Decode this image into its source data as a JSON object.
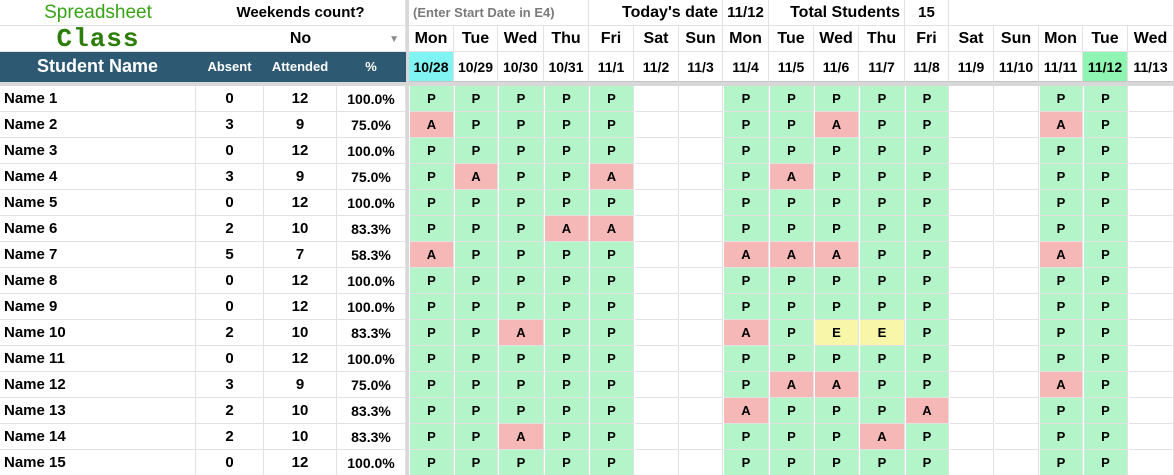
{
  "title": {
    "line1": "Spreadsheet",
    "line2": "Class"
  },
  "weekends": {
    "label": "Weekends count?",
    "value": "No"
  },
  "hint": "(Enter Start Date in E4)",
  "today": {
    "label": "Today's date",
    "value": "11/12"
  },
  "total": {
    "label": "Total Students",
    "value": "15"
  },
  "headers": {
    "name": "Student Name",
    "absent": "Absent",
    "attended": "Attended",
    "percent": "%"
  },
  "days": [
    "Mon",
    "Tue",
    "Wed",
    "Thu",
    "Fri",
    "Sat",
    "Sun",
    "Mon",
    "Tue",
    "Wed",
    "Thu",
    "Fri",
    "Sat",
    "Sun",
    "Mon",
    "Tue",
    "Wed"
  ],
  "dates": [
    "10/28",
    "10/29",
    "10/30",
    "10/31",
    "11/1",
    "11/2",
    "11/3",
    "11/4",
    "11/5",
    "11/6",
    "11/7",
    "11/8",
    "11/9",
    "11/10",
    "11/11",
    "11/12",
    "11/13"
  ],
  "students": [
    {
      "name": "Name 1",
      "absent": "0",
      "attended": "12",
      "pct": "100.0%",
      "marks": [
        "P",
        "P",
        "P",
        "P",
        "P",
        "",
        "",
        "P",
        "P",
        "P",
        "P",
        "P",
        "",
        "",
        "P",
        "P",
        ""
      ]
    },
    {
      "name": "Name 2",
      "absent": "3",
      "attended": "9",
      "pct": "75.0%",
      "marks": [
        "A",
        "P",
        "P",
        "P",
        "P",
        "",
        "",
        "P",
        "P",
        "A",
        "P",
        "P",
        "",
        "",
        "A",
        "P",
        ""
      ]
    },
    {
      "name": "Name 3",
      "absent": "0",
      "attended": "12",
      "pct": "100.0%",
      "marks": [
        "P",
        "P",
        "P",
        "P",
        "P",
        "",
        "",
        "P",
        "P",
        "P",
        "P",
        "P",
        "",
        "",
        "P",
        "P",
        ""
      ]
    },
    {
      "name": "Name 4",
      "absent": "3",
      "attended": "9",
      "pct": "75.0%",
      "marks": [
        "P",
        "A",
        "P",
        "P",
        "A",
        "",
        "",
        "P",
        "A",
        "P",
        "P",
        "P",
        "",
        "",
        "P",
        "P",
        ""
      ]
    },
    {
      "name": "Name 5",
      "absent": "0",
      "attended": "12",
      "pct": "100.0%",
      "marks": [
        "P",
        "P",
        "P",
        "P",
        "P",
        "",
        "",
        "P",
        "P",
        "P",
        "P",
        "P",
        "",
        "",
        "P",
        "P",
        ""
      ]
    },
    {
      "name": "Name 6",
      "absent": "2",
      "attended": "10",
      "pct": "83.3%",
      "marks": [
        "P",
        "P",
        "P",
        "A",
        "A",
        "",
        "",
        "P",
        "P",
        "P",
        "P",
        "P",
        "",
        "",
        "P",
        "P",
        ""
      ]
    },
    {
      "name": "Name 7",
      "absent": "5",
      "attended": "7",
      "pct": "58.3%",
      "marks": [
        "A",
        "P",
        "P",
        "P",
        "P",
        "",
        "",
        "A",
        "A",
        "A",
        "P",
        "P",
        "",
        "",
        "A",
        "P",
        ""
      ]
    },
    {
      "name": "Name 8",
      "absent": "0",
      "attended": "12",
      "pct": "100.0%",
      "marks": [
        "P",
        "P",
        "P",
        "P",
        "P",
        "",
        "",
        "P",
        "P",
        "P",
        "P",
        "P",
        "",
        "",
        "P",
        "P",
        ""
      ]
    },
    {
      "name": "Name 9",
      "absent": "0",
      "attended": "12",
      "pct": "100.0%",
      "marks": [
        "P",
        "P",
        "P",
        "P",
        "P",
        "",
        "",
        "P",
        "P",
        "P",
        "P",
        "P",
        "",
        "",
        "P",
        "P",
        ""
      ]
    },
    {
      "name": "Name 10",
      "absent": "2",
      "attended": "10",
      "pct": "83.3%",
      "marks": [
        "P",
        "P",
        "A",
        "P",
        "P",
        "",
        "",
        "A",
        "P",
        "E",
        "E",
        "P",
        "",
        "",
        "P",
        "P",
        ""
      ]
    },
    {
      "name": "Name 11",
      "absent": "0",
      "attended": "12",
      "pct": "100.0%",
      "marks": [
        "P",
        "P",
        "P",
        "P",
        "P",
        "",
        "",
        "P",
        "P",
        "P",
        "P",
        "P",
        "",
        "",
        "P",
        "P",
        ""
      ]
    },
    {
      "name": "Name 12",
      "absent": "3",
      "attended": "9",
      "pct": "75.0%",
      "marks": [
        "P",
        "P",
        "P",
        "P",
        "P",
        "",
        "",
        "P",
        "A",
        "A",
        "P",
        "P",
        "",
        "",
        "A",
        "P",
        ""
      ]
    },
    {
      "name": "Name 13",
      "absent": "2",
      "attended": "10",
      "pct": "83.3%",
      "marks": [
        "P",
        "P",
        "P",
        "P",
        "P",
        "",
        "",
        "A",
        "P",
        "P",
        "P",
        "A",
        "",
        "",
        "P",
        "P",
        ""
      ]
    },
    {
      "name": "Name 14",
      "absent": "2",
      "attended": "10",
      "pct": "83.3%",
      "marks": [
        "P",
        "P",
        "A",
        "P",
        "P",
        "",
        "",
        "P",
        "P",
        "P",
        "A",
        "P",
        "",
        "",
        "P",
        "P",
        ""
      ]
    },
    {
      "name": "Name 15",
      "absent": "0",
      "attended": "12",
      "pct": "100.0%",
      "marks": [
        "P",
        "P",
        "P",
        "P",
        "P",
        "",
        "",
        "P",
        "P",
        "P",
        "P",
        "P",
        "",
        "",
        "P",
        "P",
        ""
      ]
    }
  ],
  "colors": {
    "header_dark": "#2d5973",
    "present": "#b3f5c8",
    "absent": "#f6b7b7",
    "excused": "#f8f6a8",
    "start_date_highlight": "#7ff4f2",
    "today_highlight": "#8ef5b2",
    "title_green": "#38a316"
  }
}
